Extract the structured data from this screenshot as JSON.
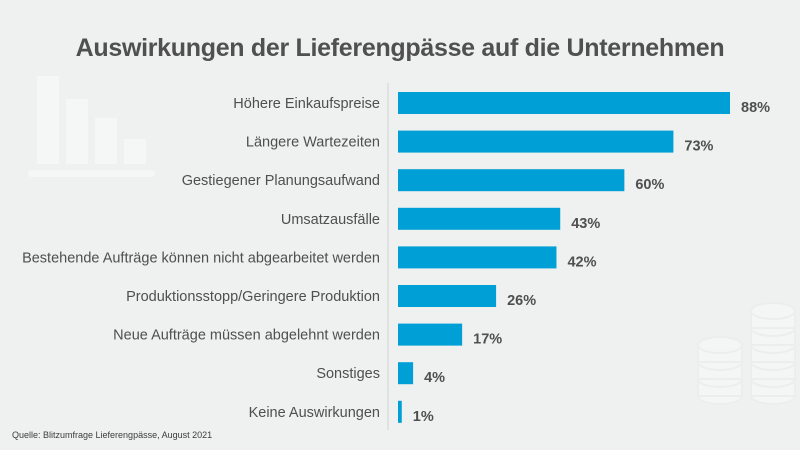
{
  "chart_data": {
    "type": "bar",
    "orientation": "horizontal",
    "title": "Auswirkungen der Lieferengpässe auf die Unternehmen",
    "categories": [
      "Höhere Einkaufspreise",
      "Längere Wartezeiten",
      "Gestiegener Planungsaufwand",
      "Umsatzausfälle",
      "Bestehende Aufträge können nicht abgearbeitet werden",
      "Produktionsstopp/Geringere Produktion",
      "Neue Aufträge müssen abgelehnt werden",
      "Sonstiges",
      "Keine Auswirkungen"
    ],
    "values": [
      88,
      73,
      60,
      43,
      42,
      26,
      17,
      4,
      1
    ],
    "value_labels": [
      "88%",
      "73%",
      "60%",
      "43%",
      "42%",
      "26%",
      "17%",
      "4%",
      "1%"
    ],
    "unit": "%",
    "xlabel": "",
    "ylabel": "",
    "xlim": [
      0,
      100
    ],
    "grid": false,
    "legend": "none",
    "bar_color": "#009fd6",
    "source": "Quelle: Blitzumfrage Lieferengpässe, August 2021"
  },
  "colors": {
    "background": "#eff0f0",
    "bar": "#009fd6",
    "text": "#4f4f4f",
    "axis": "#dcdcdc",
    "decoration": "#f5f6f6"
  }
}
